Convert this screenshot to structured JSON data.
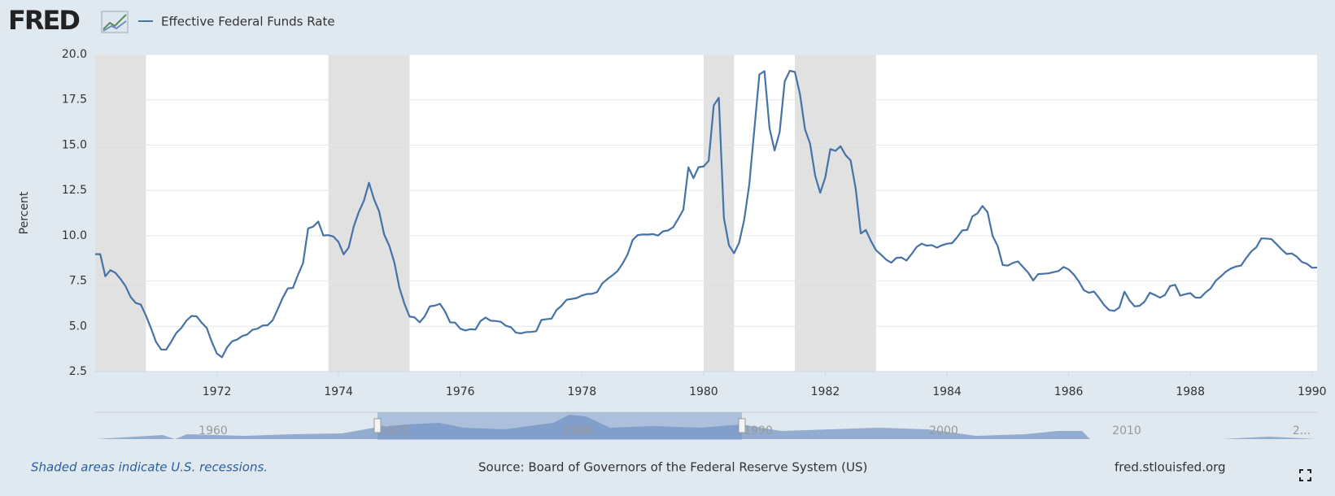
{
  "logo": "FRED",
  "chart_data": {
    "type": "line",
    "series": [
      {
        "name": "Effective Federal Funds Rate",
        "color": "#4572a7",
        "values": [
          8.98,
          8.98,
          7.76,
          8.1,
          7.95,
          7.61,
          7.21,
          6.61,
          6.29,
          6.2,
          5.6,
          4.9,
          4.14,
          3.72,
          3.71,
          4.15,
          4.63,
          4.91,
          5.31,
          5.57,
          5.55,
          5.2,
          4.91,
          4.14,
          3.5,
          3.29,
          3.83,
          4.17,
          4.27,
          4.46,
          4.55,
          4.8,
          4.87,
          5.04,
          5.06,
          5.33,
          5.94,
          6.58,
          7.09,
          7.12,
          7.84,
          8.49,
          10.4,
          10.5,
          10.78,
          10.01,
          10.03,
          9.95,
          9.65,
          8.97,
          9.35,
          10.51,
          11.31,
          11.93,
          12.92,
          12.01,
          11.34,
          10.06,
          9.45,
          8.53,
          7.13,
          6.24,
          5.54,
          5.49,
          5.22,
          5.55,
          6.1,
          6.14,
          6.24,
          5.82,
          5.22,
          5.2,
          4.87,
          4.77,
          4.84,
          4.82,
          5.29,
          5.48,
          5.31,
          5.29,
          5.25,
          5.03,
          4.95,
          4.65,
          4.61,
          4.68,
          4.69,
          4.73,
          5.35,
          5.39,
          5.42,
          5.9,
          6.14,
          6.47,
          6.51,
          6.56,
          6.7,
          6.78,
          6.79,
          6.89,
          7.36,
          7.6,
          7.81,
          8.04,
          8.45,
          8.96,
          9.76,
          10.03,
          10.07,
          10.06,
          10.09,
          10.01,
          10.24,
          10.29,
          10.47,
          10.94,
          11.43,
          13.77,
          13.18,
          13.78,
          13.82,
          14.13,
          17.19,
          17.61,
          10.98,
          9.47,
          9.03,
          9.61,
          10.87,
          12.81,
          15.85,
          18.9,
          19.08,
          15.93,
          14.7,
          15.72,
          18.52,
          19.1,
          19.04,
          17.82,
          15.87,
          15.08,
          13.31,
          12.37,
          13.22,
          14.78,
          14.68,
          14.94,
          14.45,
          14.15,
          12.59,
          10.12,
          10.31,
          9.71,
          9.2,
          8.95,
          8.68,
          8.51,
          8.77,
          8.8,
          8.63,
          8.98,
          9.37,
          9.56,
          9.45,
          9.48,
          9.34,
          9.47,
          9.56,
          9.59,
          9.91,
          10.29,
          10.32,
          11.06,
          11.23,
          11.64,
          11.3,
          9.99,
          9.43,
          8.38,
          8.35,
          8.5,
          8.58,
          8.27,
          7.97,
          7.53,
          7.88,
          7.9,
          7.92,
          7.99,
          8.05,
          8.27,
          8.14,
          7.86,
          7.48,
          6.99,
          6.85,
          6.92,
          6.56,
          6.17,
          5.89,
          5.85,
          6.04,
          6.91,
          6.43,
          6.1,
          6.13,
          6.37,
          6.85,
          6.73,
          6.58,
          6.73,
          7.22,
          7.29,
          6.69,
          6.77,
          6.83,
          6.58,
          6.58,
          6.87,
          7.09,
          7.51,
          7.75,
          8.01,
          8.19,
          8.3,
          8.35,
          8.76,
          9.12,
          9.36,
          9.85,
          9.84,
          9.81,
          9.53,
          9.24,
          8.99,
          9.02,
          8.84,
          8.55,
          8.45,
          8.23,
          8.24
        ]
      }
    ],
    "x": [
      "1970-01",
      "1970-02",
      "1970-03",
      "1970-04",
      "1970-05",
      "1970-06",
      "1970-07",
      "1970-08",
      "1970-09",
      "1970-10",
      "1970-11",
      "1970-12",
      "1971-01",
      "1971-02",
      "1971-03",
      "1971-04",
      "1971-05",
      "1971-06",
      "1971-07",
      "1971-08",
      "1971-09",
      "1971-10",
      "1971-11",
      "1971-12",
      "1972-01",
      "1972-02",
      "1972-03",
      "1972-04",
      "1972-05",
      "1972-06",
      "1972-07",
      "1972-08",
      "1972-09",
      "1972-10",
      "1972-11",
      "1972-12",
      "1973-01",
      "1973-02",
      "1973-03",
      "1973-04",
      "1973-05",
      "1973-06",
      "1973-07",
      "1973-08",
      "1973-09",
      "1973-10",
      "1973-11",
      "1973-12",
      "1974-01",
      "1974-02",
      "1974-03",
      "1974-04",
      "1974-05",
      "1974-06",
      "1974-07",
      "1974-08",
      "1974-09",
      "1974-10",
      "1974-11",
      "1974-12",
      "1975-01",
      "1975-02",
      "1975-03",
      "1975-04",
      "1975-05",
      "1975-06",
      "1975-07",
      "1975-08",
      "1975-09",
      "1975-10",
      "1975-11",
      "1975-12",
      "1976-01",
      "1976-02",
      "1976-03",
      "1976-04",
      "1976-05",
      "1976-06",
      "1976-07",
      "1976-08",
      "1976-09",
      "1976-10",
      "1976-11",
      "1976-12",
      "1977-01",
      "1977-02",
      "1977-03",
      "1977-04",
      "1977-05",
      "1977-06",
      "1977-07",
      "1977-08",
      "1977-09",
      "1977-10",
      "1977-11",
      "1977-12",
      "1978-01",
      "1978-02",
      "1978-03",
      "1978-04",
      "1978-05",
      "1978-06",
      "1978-07",
      "1978-08",
      "1978-09",
      "1978-10",
      "1978-11",
      "1978-12",
      "1979-01",
      "1979-02",
      "1979-03",
      "1979-04",
      "1979-05",
      "1979-06",
      "1979-07",
      "1979-08",
      "1979-09",
      "1979-10",
      "1979-11",
      "1979-12",
      "1980-01",
      "1980-02",
      "1980-03",
      "1980-04",
      "1980-05",
      "1980-06",
      "1980-07",
      "1980-08",
      "1980-09",
      "1980-10",
      "1980-11",
      "1980-12",
      "1981-01",
      "1981-02",
      "1981-03",
      "1981-04",
      "1981-05",
      "1981-06",
      "1981-07",
      "1981-08",
      "1981-09",
      "1981-10",
      "1981-11",
      "1981-12",
      "1982-01",
      "1982-02",
      "1982-03",
      "1982-04",
      "1982-05",
      "1982-06",
      "1982-07",
      "1982-08",
      "1982-09",
      "1982-10",
      "1982-11",
      "1982-12",
      "1983-01",
      "1983-02",
      "1983-03",
      "1983-04",
      "1983-05",
      "1983-06",
      "1983-07",
      "1983-08",
      "1983-09",
      "1983-10",
      "1983-11",
      "1983-12",
      "1984-01",
      "1984-02",
      "1984-03",
      "1984-04",
      "1984-05",
      "1984-06",
      "1984-07",
      "1984-08",
      "1984-09",
      "1984-10",
      "1984-11",
      "1984-12",
      "1985-01",
      "1985-02",
      "1985-03",
      "1985-04",
      "1985-05",
      "1985-06",
      "1985-07",
      "1985-08",
      "1985-09",
      "1985-10",
      "1985-11",
      "1985-12",
      "1986-01",
      "1986-02",
      "1986-03",
      "1986-04",
      "1986-05",
      "1986-06",
      "1986-07",
      "1986-08",
      "1986-09",
      "1986-10",
      "1986-11",
      "1986-12",
      "1987-01",
      "1987-02",
      "1987-03",
      "1987-04",
      "1987-05",
      "1987-06",
      "1987-07",
      "1987-08",
      "1987-09",
      "1987-10",
      "1987-11",
      "1987-12",
      "1988-01",
      "1988-02",
      "1988-03",
      "1988-04",
      "1988-05",
      "1988-06",
      "1988-07",
      "1988-08",
      "1988-09",
      "1988-10",
      "1988-11",
      "1988-12",
      "1989-01",
      "1989-02",
      "1989-03",
      "1989-04",
      "1989-05",
      "1989-06",
      "1989-07",
      "1989-08",
      "1989-09",
      "1989-10",
      "1989-11",
      "1989-12",
      "1990-01",
      "1990-02"
    ],
    "xlim": [
      "1970-01",
      "1990-02"
    ],
    "xticks": [
      1972,
      1974,
      1976,
      1978,
      1980,
      1982,
      1984,
      1986,
      1988,
      1990
    ],
    "ylim": [
      2.5,
      20
    ],
    "yticks": [
      2.5,
      {
        "value": 5,
        "label": "5.0"
      },
      7.5,
      {
        "value": 10,
        "label": "10.0"
      },
      12.5,
      {
        "value": 15,
        "label": "15.0"
      },
      17.5,
      {
        "value": 20,
        "label": "20.0"
      }
    ],
    "ylabel": "Percent",
    "grid": true,
    "recessions": [
      [
        "1969-12",
        "1970-11"
      ],
      [
        "1973-11",
        "1975-03"
      ],
      [
        "1980-01",
        "1980-07"
      ],
      [
        "1981-07",
        "1982-11"
      ]
    ],
    "recession_color": "#e1e1e1"
  },
  "navigator": {
    "labels": [
      "1960",
      "1970",
      "1980",
      "1990",
      "2000",
      "2010",
      "2..."
    ]
  },
  "footer": {
    "note": "Shaded areas indicate U.S. recessions.",
    "source": "Source: Board of Governors of the Federal Reserve System (US)",
    "site": "fred.stlouisfed.org"
  }
}
